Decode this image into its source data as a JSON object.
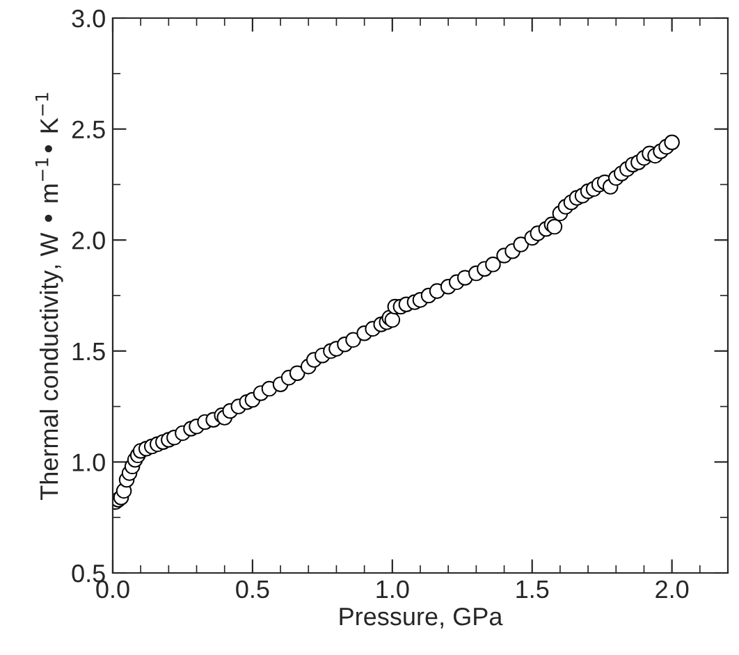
{
  "chart_data": {
    "type": "scatter",
    "xlabel": "Pressure, GPa",
    "ylabel": "Thermal conductivity, W • m$^{−1}$• K$^{−1}$",
    "x": [
      0.01,
      0.02,
      0.03,
      0.04,
      0.05,
      0.06,
      0.07,
      0.08,
      0.09,
      0.1,
      0.12,
      0.14,
      0.16,
      0.18,
      0.2,
      0.22,
      0.25,
      0.28,
      0.3,
      0.33,
      0.36,
      0.39,
      0.4,
      0.42,
      0.45,
      0.48,
      0.5,
      0.53,
      0.56,
      0.6,
      0.63,
      0.66,
      0.7,
      0.72,
      0.75,
      0.78,
      0.8,
      0.83,
      0.86,
      0.9,
      0.93,
      0.96,
      0.98,
      0.99,
      1.0,
      1.01,
      1.03,
      1.05,
      1.08,
      1.1,
      1.13,
      1.16,
      1.2,
      1.23,
      1.26,
      1.3,
      1.33,
      1.36,
      1.4,
      1.43,
      1.46,
      1.5,
      1.52,
      1.55,
      1.57,
      1.58,
      1.6,
      1.62,
      1.64,
      1.66,
      1.68,
      1.7,
      1.72,
      1.74,
      1.76,
      1.78,
      1.8,
      1.82,
      1.84,
      1.86,
      1.88,
      1.9,
      1.92,
      1.94,
      1.96,
      1.98,
      2.0
    ],
    "values": [
      0.82,
      0.83,
      0.84,
      0.87,
      0.92,
      0.95,
      0.98,
      1.01,
      1.03,
      1.05,
      1.06,
      1.07,
      1.08,
      1.09,
      1.1,
      1.11,
      1.13,
      1.15,
      1.16,
      1.18,
      1.19,
      1.21,
      1.2,
      1.23,
      1.25,
      1.27,
      1.28,
      1.31,
      1.33,
      1.35,
      1.38,
      1.4,
      1.43,
      1.46,
      1.48,
      1.5,
      1.51,
      1.53,
      1.55,
      1.58,
      1.6,
      1.62,
      1.63,
      1.65,
      1.64,
      1.7,
      1.7,
      1.71,
      1.72,
      1.73,
      1.75,
      1.77,
      1.79,
      1.81,
      1.83,
      1.85,
      1.87,
      1.89,
      1.93,
      1.95,
      1.98,
      2.01,
      2.03,
      2.05,
      2.07,
      2.06,
      2.12,
      2.15,
      2.17,
      2.19,
      2.2,
      2.22,
      2.23,
      2.25,
      2.26,
      2.24,
      2.28,
      2.3,
      2.32,
      2.34,
      2.35,
      2.37,
      2.39,
      2.38,
      2.4,
      2.42,
      2.44
    ],
    "color": "#ffffff",
    "marker": "circle",
    "xlim": [
      0,
      2.2
    ],
    "ylim": [
      0.5,
      3.0
    ],
    "xticks": [
      {
        "value": 0,
        "label": "0.0"
      },
      0.5,
      {
        "value": 1,
        "label": "1.0"
      },
      1.5,
      {
        "value": 2,
        "label": "2.0"
      }
    ],
    "yticks": [
      0.5,
      {
        "value": 1,
        "label": "1.0"
      },
      1.5,
      {
        "value": 2,
        "label": "2.0"
      },
      2.5,
      {
        "value": 3,
        "label": "3.0"
      }
    ],
    "grid": false
  }
}
